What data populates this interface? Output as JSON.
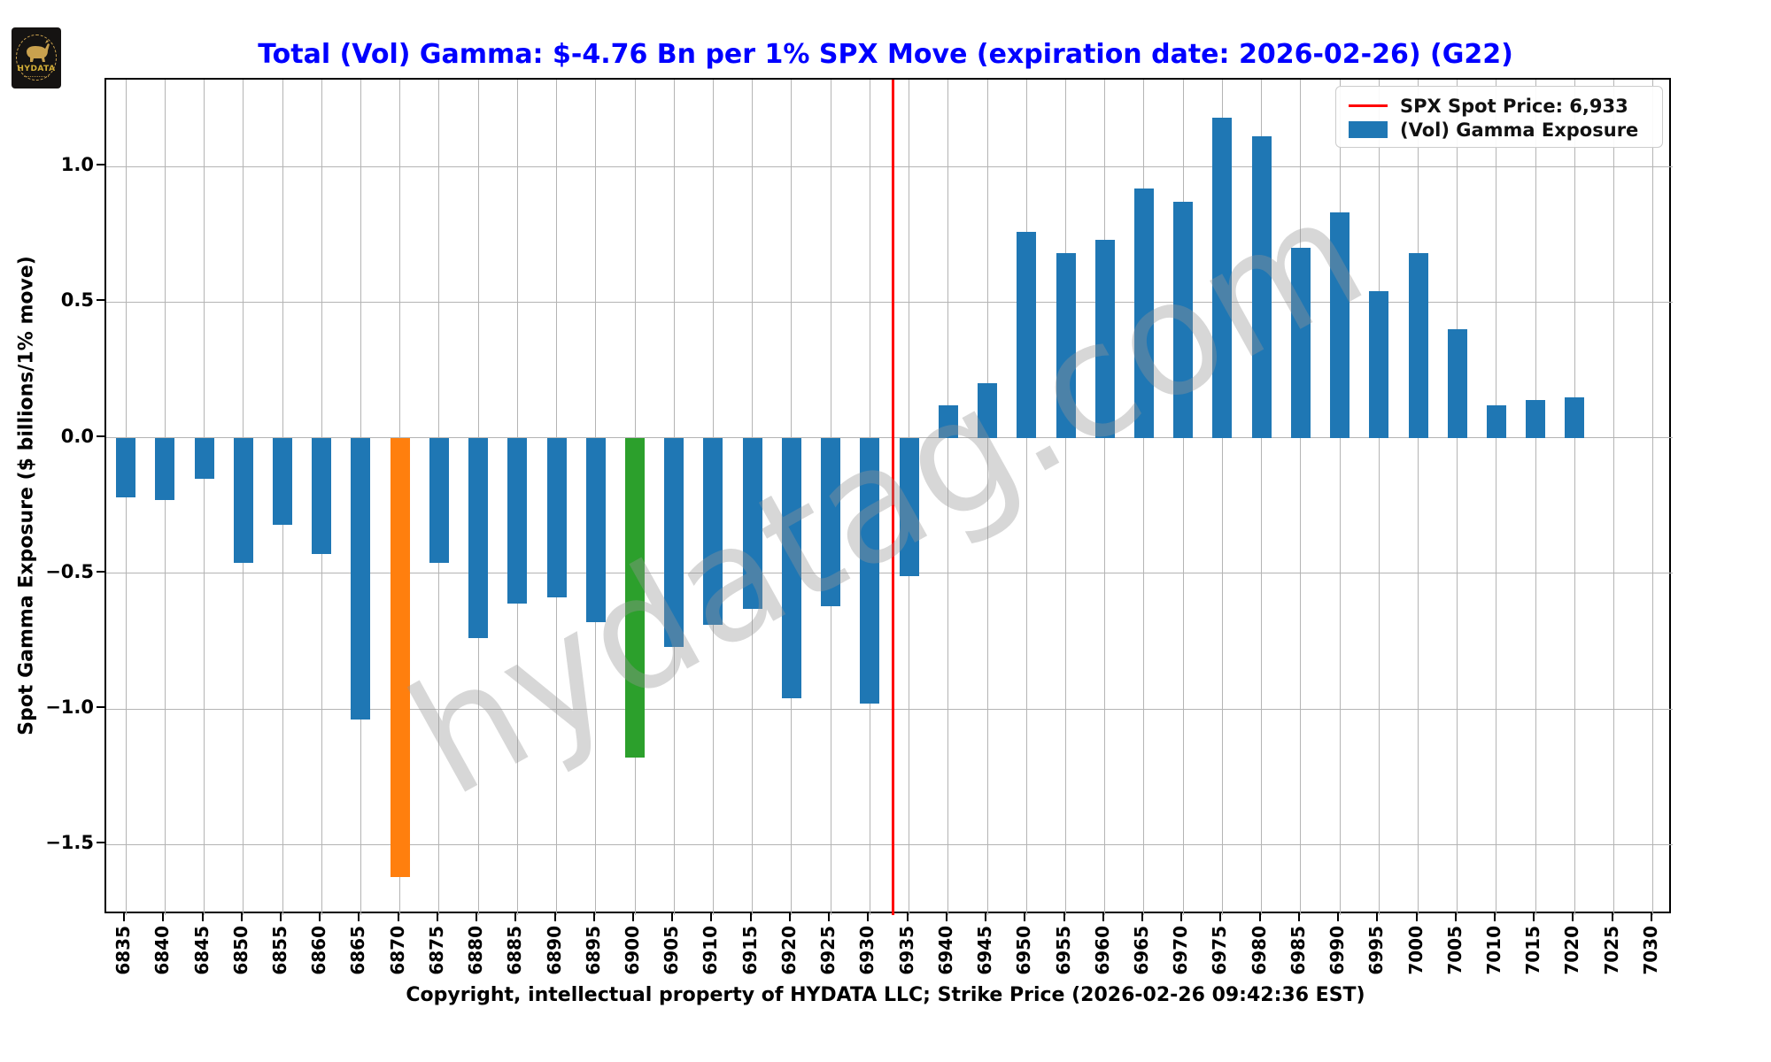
{
  "logo": {
    "brand": "HYDATA"
  },
  "title": "Total (Vol) Gamma: $-4.76 Bn per 1% SPX Move (expiration date: 2026-02-26) (G22)",
  "watermark": "hydatag.com",
  "xlabel": "Copyright, intellectual property of HYDATA LLC; Strike Price (2026-02-26 09:42:36 EST)",
  "ylabel": "Spot Gamma Exposure ($ billions/1% move)",
  "legend": {
    "items": [
      {
        "label": "SPX Spot Price: 6,933",
        "swatch": "line",
        "color": "#ff0000"
      },
      {
        "label": "(Vol) Gamma Exposure",
        "swatch": "rect",
        "color": "#1f77b4"
      }
    ]
  },
  "chart_data": {
    "type": "bar",
    "title": "Total (Vol) Gamma: $-4.76 Bn per 1% SPX Move (expiration date: 2026-02-26) (G22)",
    "xlabel": "Copyright, intellectual property of HYDATA LLC; Strike Price (2026-02-26 09:42:36 EST)",
    "ylabel": "Spot Gamma Exposure ($ billions/1% move)",
    "categories": [
      6835,
      6840,
      6845,
      6850,
      6855,
      6860,
      6865,
      6870,
      6875,
      6880,
      6885,
      6890,
      6895,
      6900,
      6905,
      6910,
      6915,
      6920,
      6925,
      6930,
      6935,
      6940,
      6945,
      6950,
      6955,
      6960,
      6965,
      6970,
      6975,
      6980,
      6985,
      6990,
      6995,
      7000,
      7005,
      7010,
      7015,
      7020,
      7025,
      7030
    ],
    "values": [
      -0.22,
      -0.23,
      -0.15,
      -0.46,
      -0.32,
      -0.43,
      -1.04,
      -1.62,
      -0.46,
      -0.74,
      -0.61,
      -0.59,
      -0.68,
      -1.18,
      -0.77,
      -0.69,
      -0.63,
      -0.96,
      -0.62,
      -0.98,
      -0.51,
      0.12,
      0.2,
      0.76,
      0.68,
      0.73,
      0.92,
      0.87,
      1.18,
      1.11,
      0.7,
      0.83,
      0.54,
      0.68,
      0.4,
      0.12,
      0.14,
      0.15,
      null,
      null
    ],
    "series_name": "(Vol) Gamma Exposure",
    "default_bar_color": "#1f77b4",
    "bar_colors": {
      "6870": "#ff7f0e",
      "6900": "#2ca02c"
    },
    "spot_price": 6933,
    "spot_price_label": "SPX Spot Price: 6,933",
    "spot_line_color": "#ff0000",
    "yticks": [
      1.0,
      0.5,
      0.0,
      -0.5,
      -1.0,
      -1.5
    ],
    "ylim": [
      -1.76,
      1.32
    ],
    "grid": true,
    "legend_position": "upper right",
    "total_gamma_bn": -4.76,
    "expiration_date": "2026-02-26"
  }
}
